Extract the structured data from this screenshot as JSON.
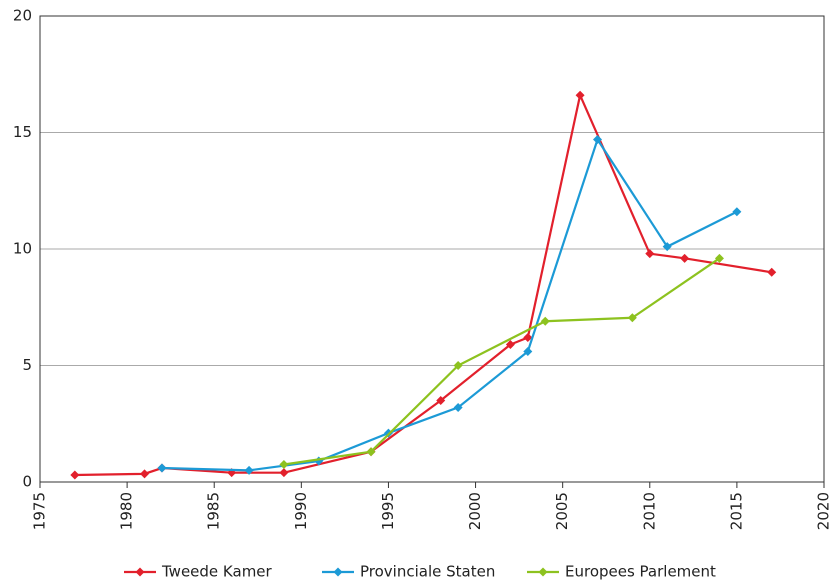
{
  "chart_data": {
    "type": "line",
    "xlim": [
      1975,
      2020
    ],
    "xticks": [
      1975,
      1980,
      1985,
      1990,
      1995,
      2000,
      2005,
      2010,
      2015,
      2020
    ],
    "ylim": [
      0,
      20
    ],
    "yticks": [
      0,
      5,
      10,
      15,
      20
    ],
    "grid": true,
    "legend": "bottom",
    "series": [
      {
        "name": "Tweede Kamer",
        "color": "#e2202c",
        "x": [
          1977,
          1981,
          1982,
          1986,
          1989,
          1994,
          1998,
          2002,
          2003,
          2006,
          2010,
          2012,
          2017
        ],
        "values": [
          0.3,
          0.35,
          0.6,
          0.4,
          0.4,
          1.3,
          3.5,
          5.9,
          6.2,
          16.6,
          9.8,
          9.6,
          9.0
        ]
      },
      {
        "name": "Provinciale Staten",
        "color": "#1c9ad6",
        "x": [
          1982,
          1987,
          1991,
          1995,
          1999,
          2003,
          2007,
          2011,
          2015
        ],
        "values": [
          0.6,
          0.5,
          0.9,
          2.1,
          3.2,
          5.6,
          14.7,
          10.1,
          11.6
        ]
      },
      {
        "name": "Europees Parlement",
        "color": "#8dc21f",
        "x": [
          1989,
          1994,
          1999,
          2004,
          2009,
          2014
        ],
        "values": [
          0.75,
          1.3,
          5.0,
          6.9,
          7.05,
          9.6
        ]
      }
    ]
  }
}
